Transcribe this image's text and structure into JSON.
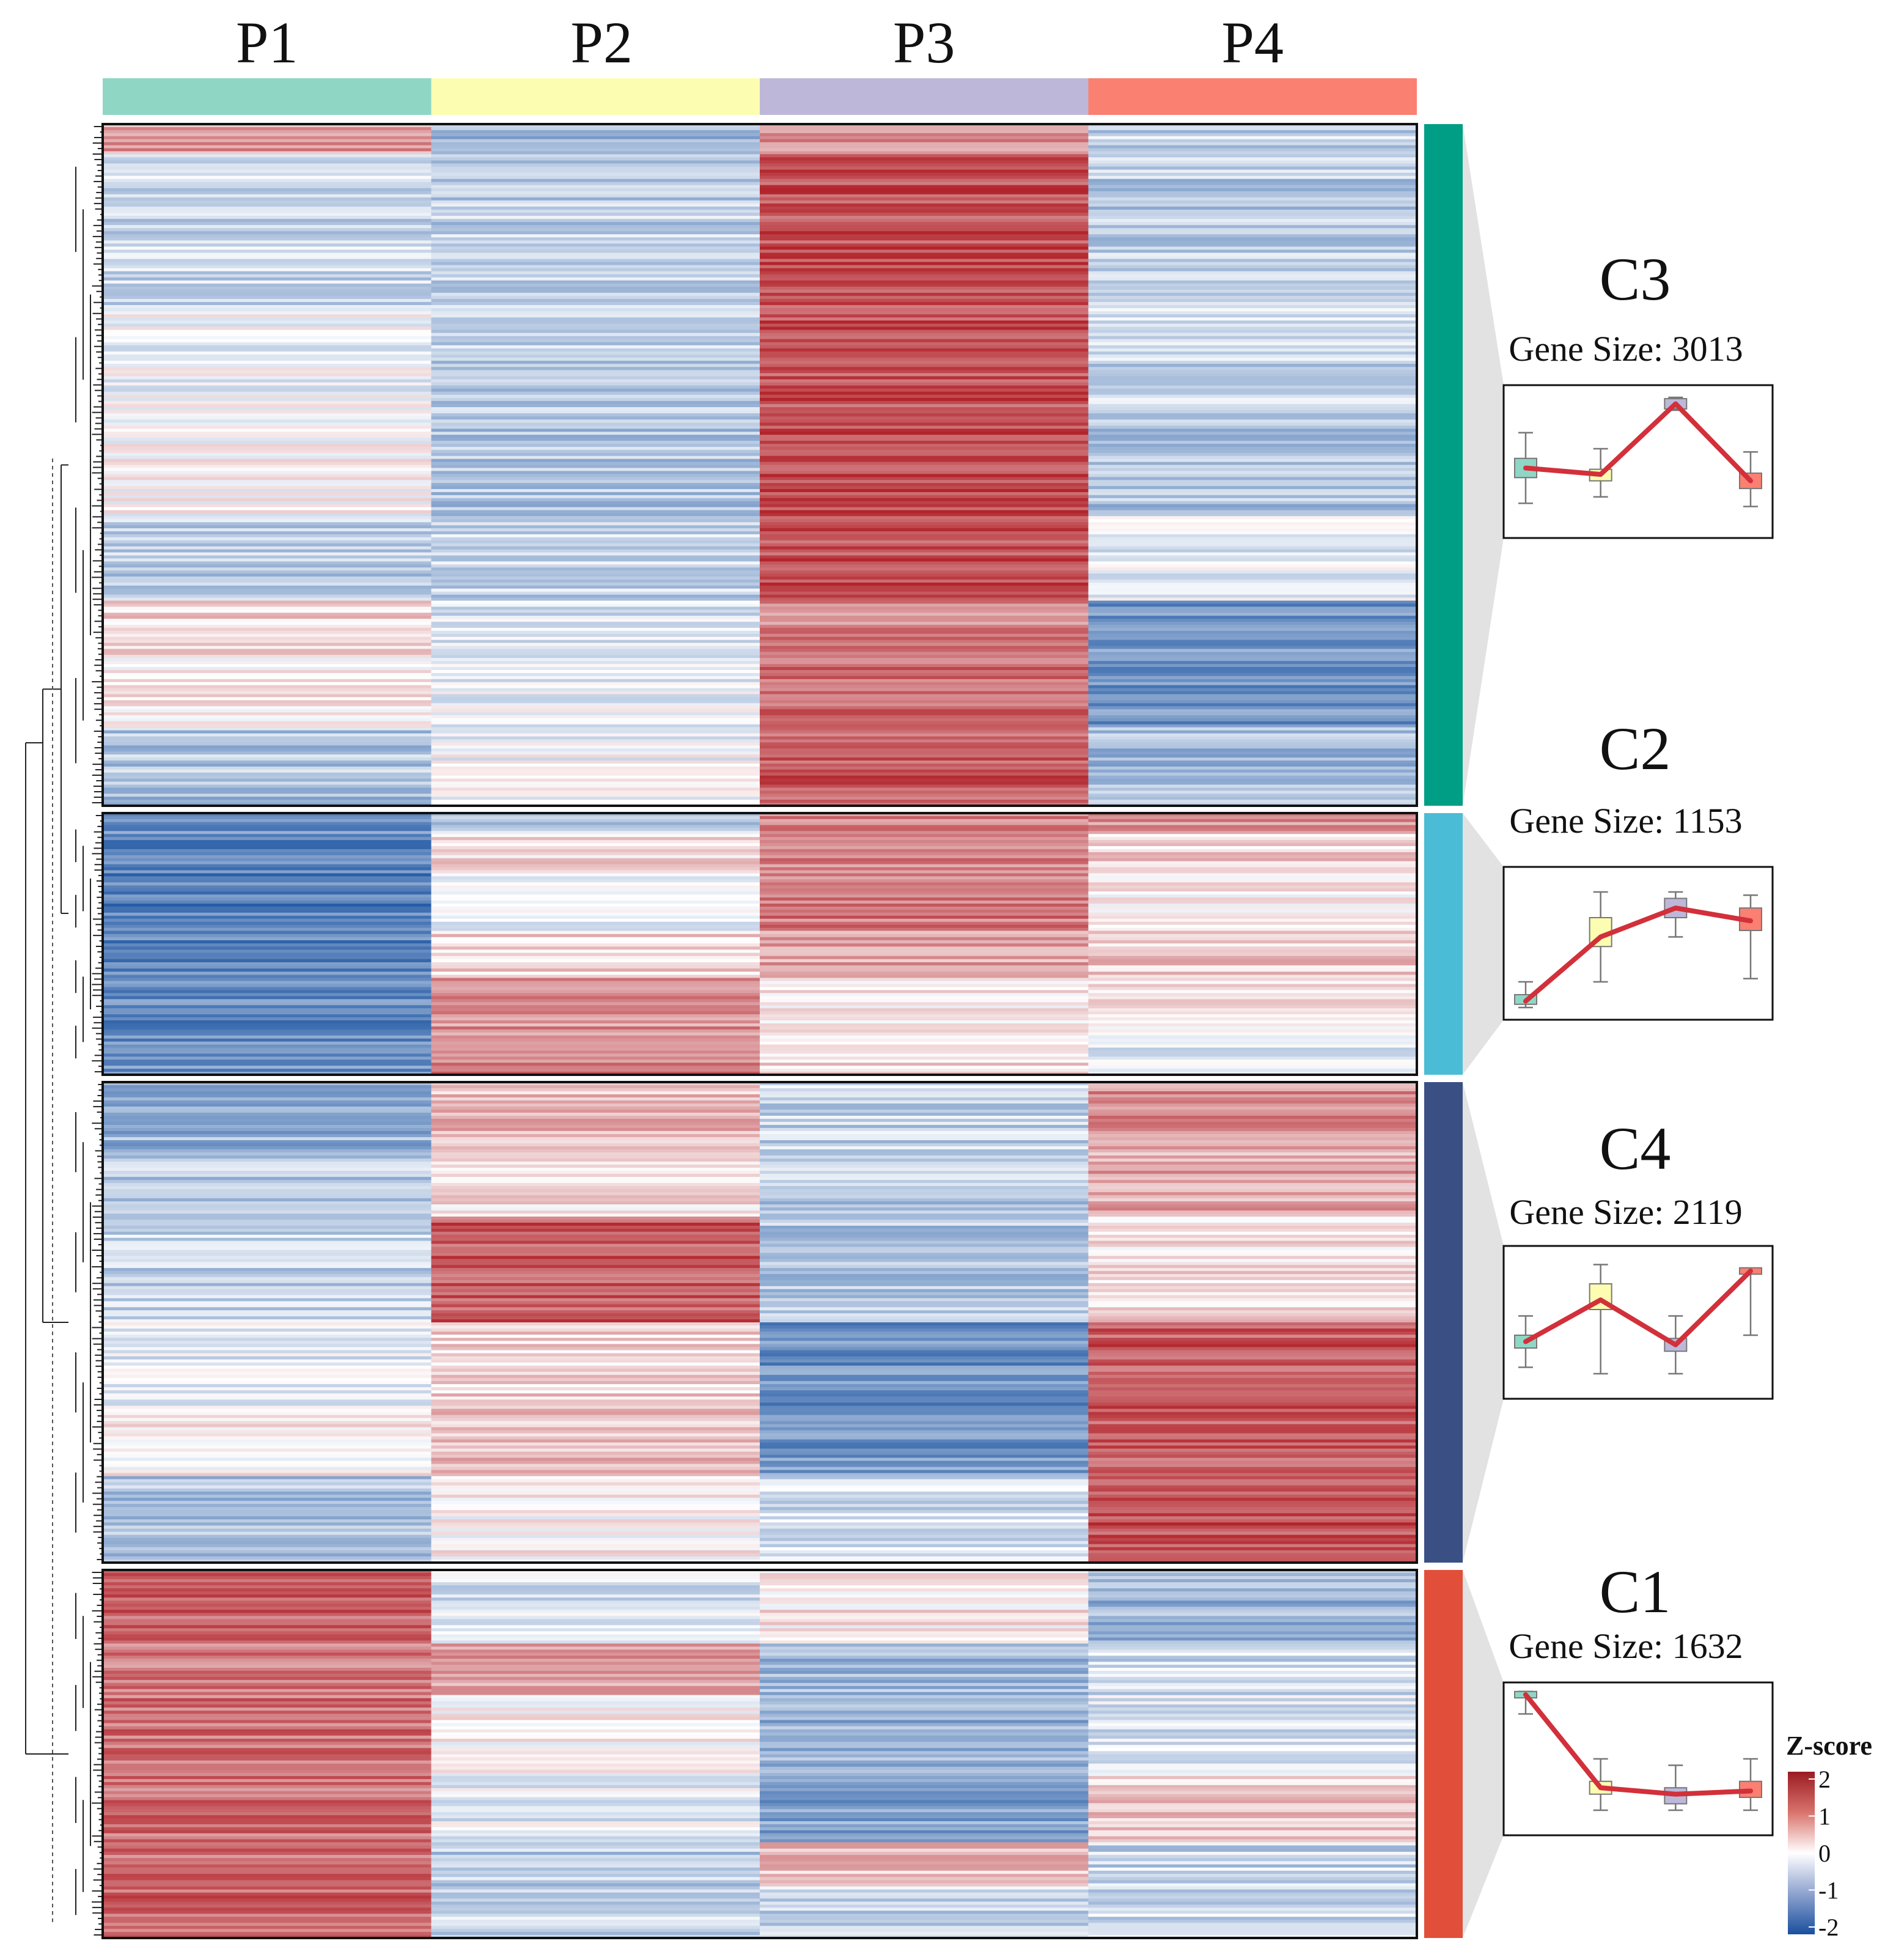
{
  "chart_data": {
    "type": "heatmap",
    "title": "",
    "xlabel": "",
    "ylabel": "",
    "columns": [
      "P1",
      "P2",
      "P3",
      "P4"
    ],
    "column_colors": [
      "#8fd6c5",
      "#fdfdb2",
      "#bdb8d9",
      "#fa8072"
    ],
    "colorbar": {
      "title": "Z-score",
      "ticks": [
        "2",
        "1",
        "0",
        "-1",
        "-2"
      ],
      "range": [
        -2,
        2
      ],
      "colors": [
        "#1e56a3",
        "#ffffff",
        "#b2242b"
      ]
    },
    "clusters": [
      {
        "id": "C3",
        "label": "C3",
        "gene_size_label": "Gene Size: 3013",
        "gene_size": 3013,
        "color": "#009e84",
        "mean_profile": [
          -0.1,
          -0.2,
          0.9,
          -0.3
        ],
        "box_iqr": [
          [
            -0.25,
            0.05
          ],
          [
            -0.3,
            -0.12
          ],
          [
            0.82,
            0.98
          ],
          [
            -0.42,
            -0.18
          ]
        ],
        "box_whiskers": [
          [
            -0.65,
            0.45
          ],
          [
            -0.55,
            0.2
          ],
          [
            0.8,
            1.0
          ],
          [
            -0.7,
            0.15
          ]
        ],
        "blocks": [
          {
            "weight": 5,
            "values": [
              0.9,
              -0.8,
              1.0,
              -0.5
            ]
          },
          {
            "weight": 25,
            "values": [
              -0.45,
              -0.55,
              1.6,
              -0.6
            ]
          },
          {
            "weight": 20,
            "values": [
              -0.1,
              -0.6,
              1.6,
              -0.5
            ]
          },
          {
            "weight": 15,
            "values": [
              0.05,
              -0.65,
              1.6,
              -0.7
            ]
          },
          {
            "weight": 14,
            "values": [
              -0.6,
              -0.5,
              1.6,
              -0.2
            ]
          },
          {
            "weight": 9,
            "values": [
              0.35,
              -0.3,
              1.1,
              -1.2
            ]
          },
          {
            "weight": 12,
            "values": [
              0.15,
              -0.15,
              1.3,
              -1.3
            ]
          },
          {
            "weight": 13,
            "values": [
              -0.7,
              -0.1,
              1.5,
              -0.8
            ]
          }
        ]
      },
      {
        "id": "C2",
        "label": "C2",
        "gene_size_label": "Gene Size: 1153",
        "gene_size": 1153,
        "color": "#4bbcd6",
        "mean_profile": [
          -0.9,
          0.1,
          0.55,
          0.35
        ],
        "box_iqr": [
          [
            -0.95,
            -0.8
          ],
          [
            -0.05,
            0.4
          ],
          [
            0.4,
            0.7
          ],
          [
            0.2,
            0.55
          ]
        ],
        "box_whiskers": [
          [
            -1.0,
            -0.6
          ],
          [
            -0.6,
            0.8
          ],
          [
            0.1,
            0.8
          ],
          [
            -0.55,
            0.75
          ]
        ],
        "blocks": [
          {
            "weight": 8,
            "values": [
              -1.3,
              -0.6,
              1.1,
              1.0
            ]
          },
          {
            "weight": 15,
            "values": [
              -1.4,
              0.3,
              1.1,
              0.4
            ]
          },
          {
            "weight": 22,
            "values": [
              -1.5,
              -0.2,
              1.2,
              0.1
            ]
          },
          {
            "weight": 18,
            "values": [
              -1.45,
              0.4,
              0.8,
              0.5
            ]
          },
          {
            "weight": 22,
            "values": [
              -1.4,
              1.0,
              0.2,
              0.3
            ]
          },
          {
            "weight": 15,
            "values": [
              -1.3,
              1.2,
              0.3,
              -0.3
            ]
          }
        ]
      },
      {
        "id": "C4",
        "label": "C4",
        "gene_size_label": "Gene Size: 2119",
        "gene_size": 2119,
        "color": "#3a5085",
        "mean_profile": [
          -0.3,
          0.35,
          -0.35,
          0.8
        ],
        "box_iqr": [
          [
            -0.4,
            -0.2
          ],
          [
            0.2,
            0.6
          ],
          [
            -0.45,
            -0.25
          ],
          [
            0.75,
            0.85
          ]
        ],
        "box_whiskers": [
          [
            -0.7,
            0.1
          ],
          [
            -0.8,
            0.9
          ],
          [
            -0.8,
            0.1
          ],
          [
            -0.2,
            0.8
          ]
        ],
        "blocks": [
          {
            "weight": 14,
            "values": [
              -0.9,
              0.6,
              -0.5,
              1.0
            ]
          },
          {
            "weight": 14,
            "values": [
              -0.6,
              0.3,
              -0.6,
              0.8
            ]
          },
          {
            "weight": 22,
            "values": [
              -0.5,
              1.5,
              -0.7,
              0.3
            ]
          },
          {
            "weight": 18,
            "values": [
              -0.2,
              0.4,
              -1.3,
              1.5
            ]
          },
          {
            "weight": 14,
            "values": [
              0.2,
              0.6,
              -1.2,
              1.5
            ]
          },
          {
            "weight": 18,
            "values": [
              -0.7,
              0.1,
              -0.4,
              1.6
            ]
          }
        ]
      },
      {
        "id": "C1",
        "label": "C1",
        "gene_size_label": "Gene Size: 1632",
        "gene_size": 1632,
        "color": "#e14f3a",
        "mean_profile": [
          1.0,
          -0.45,
          -0.55,
          -0.5
        ],
        "box_iqr": [
          [
            0.95,
            1.05
          ],
          [
            -0.55,
            -0.35
          ],
          [
            -0.7,
            -0.45
          ],
          [
            -0.6,
            -0.35
          ]
        ],
        "box_whiskers": [
          [
            0.7,
            1.05
          ],
          [
            -0.8,
            0.0
          ],
          [
            -0.8,
            -0.1
          ],
          [
            -0.8,
            0.0
          ]
        ],
        "blocks": [
          {
            "weight": 20,
            "values": [
              1.4,
              -0.3,
              0.2,
              -0.9
            ]
          },
          {
            "weight": 14,
            "values": [
              1.2,
              0.9,
              -0.8,
              -0.4
            ]
          },
          {
            "weight": 22,
            "values": [
              1.3,
              0.1,
              -0.9,
              -0.3
            ]
          },
          {
            "weight": 18,
            "values": [
              1.3,
              -0.2,
              -1.1,
              0.5
            ]
          },
          {
            "weight": 12,
            "values": [
              1.3,
              -0.6,
              0.6,
              -0.5
            ]
          },
          {
            "weight": 14,
            "values": [
              1.4,
              -0.5,
              -0.5,
              -0.4
            ]
          }
        ]
      }
    ]
  }
}
